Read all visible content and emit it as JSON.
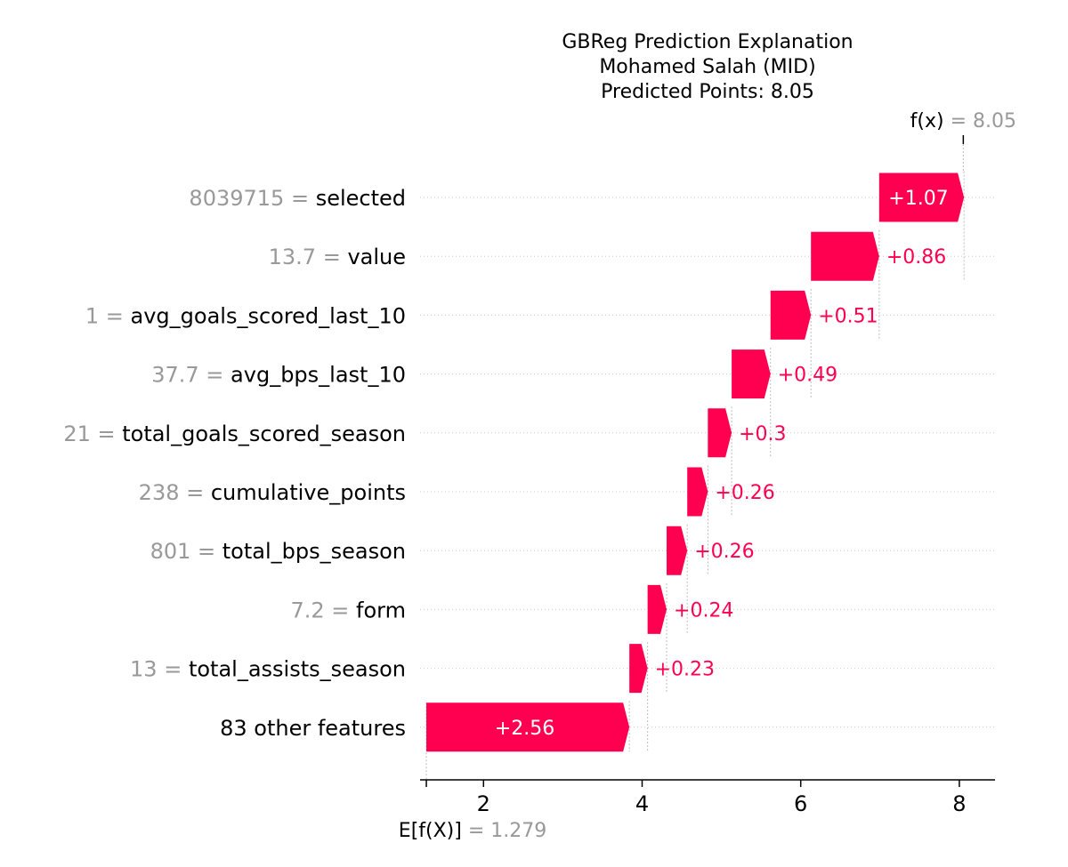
{
  "chart_data": {
    "type": "waterfall",
    "title_lines": [
      "GBReg Prediction Explanation",
      "Mohamed Salah (MID)",
      "Predicted Points: 8.05"
    ],
    "base_value": 1.279,
    "base_label": "E[f(X)]",
    "base_value_text": "1.279",
    "output_value": 8.05,
    "output_label": "f(x)",
    "output_value_text": "8.05",
    "xlim": [
      1.2,
      8.45
    ],
    "xticks": [
      2,
      4,
      6,
      8
    ],
    "positive_color": "#ff0051",
    "features": [
      {
        "value": "8039715",
        "name": "selected",
        "contribution": 1.07,
        "label": "+1.07"
      },
      {
        "value": "13.7",
        "name": "value",
        "contribution": 0.86,
        "label": "+0.86"
      },
      {
        "value": "1",
        "name": "avg_goals_scored_last_10",
        "contribution": 0.51,
        "label": "+0.51"
      },
      {
        "value": "37.7",
        "name": "avg_bps_last_10",
        "contribution": 0.49,
        "label": "+0.49"
      },
      {
        "value": "21",
        "name": "total_goals_scored_season",
        "contribution": 0.3,
        "label": "+0.3"
      },
      {
        "value": "238",
        "name": "cumulative_points",
        "contribution": 0.26,
        "label": "+0.26"
      },
      {
        "value": "801",
        "name": "total_bps_season",
        "contribution": 0.26,
        "label": "+0.26"
      },
      {
        "value": "7.2",
        "name": "form",
        "contribution": 0.24,
        "label": "+0.24"
      },
      {
        "value": "13",
        "name": "total_assists_season",
        "contribution": 0.23,
        "label": "+0.23"
      },
      {
        "value": "",
        "name": "83 other features",
        "contribution": 2.56,
        "label": "+2.56"
      }
    ]
  }
}
